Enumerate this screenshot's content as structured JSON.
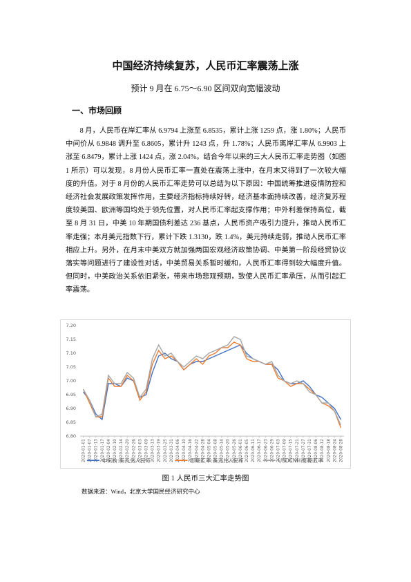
{
  "header": {
    "title": "中国经济持续复苏，人民币汇率震荡上涨",
    "subtitle": "预计 9 月在 6.75～6.90 区间双向宽幅波动"
  },
  "section": {
    "heading": "一、市场回顾",
    "paragraph": "8 月，人民币在岸汇率从 6.9794 上涨至 6.8535，累计上涨 1259 点，涨 1.80%；人民币中间价从 6.9848 调升至 6.8605，累计升 1243 点，升 1.78%；人民币离岸汇率从 6.9903 上涨至 6.8479，累计上涨 1424 点，涨 2.04%。结合今年以来的三大人民币汇率走势图（如图 1 所示）可以发现，8 月份人民币汇率一直处在震荡上涨中，在月末又得到了一次较大幅度的升值。对于 8 月份的人民币汇率走势可以总结为以下原因：中国统筹推进疫情防控和经济社会发展政策发挥作用，主要经济指标持续好转，经济基本面持续改善，经济复苏程度较美国、欧洲等国均处于领先位置，对人民币汇率起支撑作用；中外利差保持高位，截至 8 月 31 日，中美 10 年期国债利差达 236 基点，人民币资产吸引力提升，推动人民币汇率走强；本月美元指数下行，累计下跌 1.3130，跌 1.4%，美元持续走弱，推动人民币汇率相应上升。另外，在月末中美双方就加强两国宏观经济政策协调、中美第一阶段经贸协议落实等问题进行了建设性对话，中美贸易关系暂时缓和，人民币汇率得到较大幅度升值。但同时，中美政治关系依旧紧张，带来市场悲观预期，致使人民币汇率承压，从而引起汇率震荡。"
  },
  "chart_data": {
    "type": "line",
    "x": [
      "2020-01-01",
      "2020-01-07",
      "2020-01-13",
      "2020-01-17",
      "2020-02-04",
      "2020-02-10",
      "2020-02-14",
      "2020-02-20",
      "2020-02-26",
      "2020-03-03",
      "2020-03-09",
      "2020-03-13",
      "2020-03-19",
      "2020-03-25",
      "2020-03-31",
      "2020-04-06",
      "2020-04-10",
      "2020-04-16",
      "2020-04-22",
      "2020-04-28",
      "2020-05-04",
      "2020-05-08",
      "2020-05-14",
      "2020-05-20",
      "2020-05-26",
      "2020-06-01",
      "2020-06-05",
      "2020-06-11",
      "2020-06-17",
      "2020-06-23",
      "2020-06-29",
      "2020-07-03",
      "2020-07-09",
      "2020-07-15",
      "2020-07-21",
      "2020-07-27",
      "2020-07-31",
      "2020-08-06",
      "2020-08-12",
      "2020-08-18",
      "2020-08-24",
      "2020-08-28"
    ],
    "series": [
      {
        "name": "中间价:美元兑人民币",
        "color": "#4472c4",
        "values": [
          6.96,
          6.93,
          6.88,
          6.86,
          6.99,
          6.99,
          6.98,
          7.01,
          7.0,
          6.94,
          6.95,
          7.03,
          7.09,
          7.1,
          7.08,
          7.07,
          7.04,
          7.06,
          7.07,
          7.07,
          7.08,
          7.09,
          7.1,
          7.11,
          7.12,
          7.13,
          7.1,
          7.08,
          7.07,
          7.06,
          7.06,
          7.04,
          7.0,
          6.99,
          6.99,
          7.0,
          6.98,
          6.95,
          6.94,
          6.92,
          6.9,
          6.86
        ]
      },
      {
        "name": "即期汇率:美元兑人民币",
        "color": "#ed7d31",
        "values": [
          6.97,
          6.92,
          6.87,
          6.87,
          7.01,
          6.98,
          6.98,
          7.02,
          7.0,
          6.93,
          6.96,
          7.06,
          7.11,
          7.08,
          7.09,
          7.07,
          7.04,
          7.06,
          7.08,
          7.06,
          7.09,
          7.1,
          7.12,
          7.12,
          7.14,
          7.13,
          7.08,
          7.07,
          7.07,
          7.06,
          7.06,
          7.01,
          7.0,
          6.98,
          6.99,
          6.99,
          6.97,
          6.95,
          6.92,
          6.91,
          6.89,
          6.83
        ]
      },
      {
        "name": "USDCNH:即期汇率",
        "color": "#a5a5a5",
        "values": [
          6.97,
          6.93,
          6.87,
          6.88,
          7.02,
          6.99,
          6.99,
          7.03,
          7.01,
          6.94,
          6.97,
          7.08,
          7.13,
          7.09,
          7.1,
          7.07,
          7.05,
          7.07,
          7.09,
          7.08,
          7.1,
          7.11,
          7.12,
          7.13,
          7.16,
          7.15,
          7.09,
          7.08,
          7.07,
          7.06,
          7.07,
          7.02,
          7.0,
          6.99,
          7.0,
          6.99,
          6.96,
          6.95,
          6.92,
          6.92,
          6.89,
          6.84
        ]
      }
    ],
    "ylim": [
      6.8,
      7.2
    ],
    "yticks": [
      {
        "value": 6.8,
        "label": "6.80"
      },
      {
        "value": 6.85,
        "label": "6.85"
      },
      {
        "value": 6.9,
        "label": "6.90"
      },
      {
        "value": 6.95,
        "label": "6.95"
      },
      {
        "value": 7.0,
        "label": "7.00"
      },
      {
        "value": 7.05,
        "label": "7.05"
      },
      {
        "value": 7.1,
        "label": "7.10"
      },
      {
        "value": 7.15,
        "label": "7.15"
      },
      {
        "value": 7.2,
        "label": "7.20"
      }
    ],
    "grid": false,
    "legend": "bottom"
  },
  "figure": {
    "caption": "图 1 人民币三大汇率走势图",
    "source": "数据来源：Wind，北京大学国民经济研究中心"
  }
}
